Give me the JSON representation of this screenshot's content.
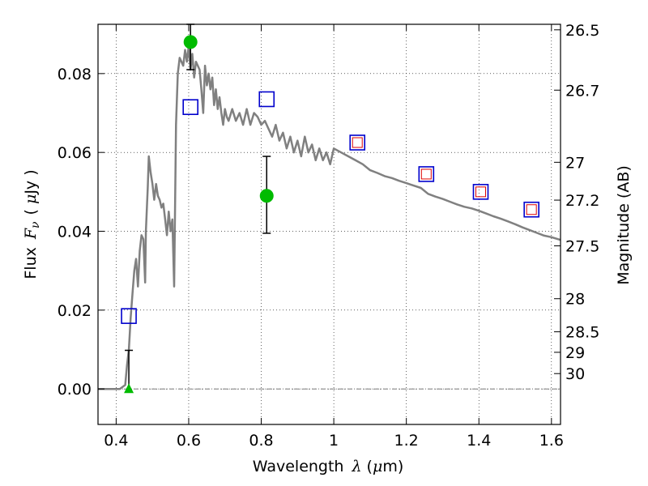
{
  "chart_data": {
    "type": "line",
    "title": "",
    "xlabel": "Wavelength",
    "xlabel_math_symbol": "λ",
    "xlabel_unit_prefix": "(",
    "xlabel_unit_mu": "μ",
    "xlabel_unit_rest": "m)",
    "ylabel": "Flux",
    "ylabel_math_symbol": "F",
    "ylabel_math_sub": "ν",
    "ylabel_unit_prefix": "(",
    "ylabel_unit_mu": "μ",
    "ylabel_unit_rest": "Jy )",
    "y2label": "Magnitude (AB)",
    "xlim": [
      0.35,
      1.625
    ],
    "ylim": [
      -0.009,
      0.0925
    ],
    "xticks": [
      0.4,
      0.6,
      0.8,
      1.0,
      1.2,
      1.4,
      1.6
    ],
    "xtick_labels": [
      "0.4",
      "0.6",
      "0.8",
      "1",
      "1.2",
      "1.4",
      "1.6"
    ],
    "yticks": [
      0.0,
      0.02,
      0.04,
      0.06,
      0.08
    ],
    "ytick_labels": [
      "0.00",
      "0.02",
      "0.04",
      "0.06",
      "0.08"
    ],
    "y2ticks": [
      {
        "label": "26.5",
        "flux": 0.0911
      },
      {
        "label": "26.7",
        "flux": 0.0758
      },
      {
        "label": "27",
        "flux": 0.0575
      },
      {
        "label": "27.2",
        "flux": 0.0479
      },
      {
        "label": "27.5",
        "flux": 0.0363
      },
      {
        "label": "28",
        "flux": 0.0229
      },
      {
        "label": "28.5",
        "flux": 0.0145
      },
      {
        "label": "29",
        "flux": 0.0093
      },
      {
        "label": "30",
        "flux": 0.0039
      }
    ],
    "grid": true,
    "zero_line": 0.0,
    "colors": {
      "model": "#808080",
      "obs": "#00bb00",
      "model_box": "#0000cc",
      "model_box_inner": "#dd0000",
      "errorbar": "#000000",
      "zero_line": "#666666"
    },
    "series": [
      {
        "name": "model SED",
        "kind": "line",
        "x": [
          0.35,
          0.41,
          0.425,
          0.43,
          0.435,
          0.44,
          0.445,
          0.45,
          0.455,
          0.46,
          0.465,
          0.47,
          0.475,
          0.48,
          0.482,
          0.487,
          0.49,
          0.495,
          0.5,
          0.505,
          0.51,
          0.515,
          0.52,
          0.525,
          0.53,
          0.535,
          0.54,
          0.545,
          0.55,
          0.555,
          0.56,
          0.565,
          0.57,
          0.575,
          0.58,
          0.585,
          0.59,
          0.595,
          0.6,
          0.605,
          0.61,
          0.615,
          0.62,
          0.625,
          0.63,
          0.635,
          0.64,
          0.645,
          0.65,
          0.655,
          0.66,
          0.665,
          0.67,
          0.675,
          0.68,
          0.685,
          0.69,
          0.695,
          0.7,
          0.705,
          0.71,
          0.72,
          0.73,
          0.74,
          0.75,
          0.76,
          0.77,
          0.78,
          0.79,
          0.8,
          0.81,
          0.82,
          0.83,
          0.84,
          0.85,
          0.86,
          0.87,
          0.88,
          0.89,
          0.9,
          0.91,
          0.92,
          0.93,
          0.94,
          0.95,
          0.96,
          0.97,
          0.98,
          0.99,
          1.0,
          1.02,
          1.04,
          1.06,
          1.08,
          1.1,
          1.12,
          1.14,
          1.16,
          1.18,
          1.2,
          1.22,
          1.24,
          1.26,
          1.28,
          1.3,
          1.32,
          1.34,
          1.36,
          1.38,
          1.4,
          1.42,
          1.44,
          1.46,
          1.48,
          1.5,
          1.52,
          1.54,
          1.56,
          1.58,
          1.6,
          1.625
        ],
        "y": [
          0.0,
          0.0,
          0.001,
          0.006,
          0.01,
          0.018,
          0.024,
          0.03,
          0.033,
          0.026,
          0.035,
          0.039,
          0.038,
          0.027,
          0.04,
          0.051,
          0.059,
          0.055,
          0.052,
          0.048,
          0.052,
          0.049,
          0.048,
          0.046,
          0.047,
          0.043,
          0.039,
          0.045,
          0.04,
          0.043,
          0.026,
          0.067,
          0.08,
          0.084,
          0.083,
          0.082,
          0.086,
          0.083,
          0.087,
          0.081,
          0.085,
          0.079,
          0.083,
          0.082,
          0.081,
          0.076,
          0.07,
          0.082,
          0.077,
          0.08,
          0.076,
          0.079,
          0.072,
          0.076,
          0.071,
          0.074,
          0.07,
          0.067,
          0.071,
          0.069,
          0.068,
          0.071,
          0.068,
          0.07,
          0.067,
          0.071,
          0.067,
          0.07,
          0.069,
          0.067,
          0.068,
          0.066,
          0.064,
          0.067,
          0.063,
          0.065,
          0.061,
          0.064,
          0.06,
          0.063,
          0.059,
          0.064,
          0.06,
          0.062,
          0.058,
          0.061,
          0.058,
          0.06,
          0.057,
          0.061,
          0.06,
          0.059,
          0.058,
          0.057,
          0.0555,
          0.0548,
          0.054,
          0.0535,
          0.0528,
          0.0522,
          0.0516,
          0.051,
          0.0495,
          0.0488,
          0.0482,
          0.0475,
          0.0468,
          0.0462,
          0.0458,
          0.0452,
          0.0445,
          0.0438,
          0.0432,
          0.0425,
          0.0418,
          0.041,
          0.0403,
          0.0396,
          0.0389,
          0.0385,
          0.0378
        ]
      },
      {
        "name": "model photometry",
        "kind": "squares",
        "x": [
          0.435,
          0.605,
          0.815,
          1.065,
          1.255,
          1.405,
          1.545
        ],
        "y": [
          0.0185,
          0.0715,
          0.0735,
          0.0625,
          0.0545,
          0.05,
          0.0455
        ]
      },
      {
        "name": "model photometry (inner)",
        "kind": "inner_squares",
        "x": [
          1.065,
          1.255,
          1.405,
          1.545
        ],
        "y": [
          0.0625,
          0.0545,
          0.05,
          0.0455
        ]
      },
      {
        "name": "observed photometry",
        "kind": "points_with_error",
        "x": [
          0.605,
          0.815
        ],
        "y": [
          0.088,
          0.049
        ],
        "yerr_low": [
          0.081,
          0.0395
        ],
        "yerr_high": [
          0.0925,
          0.059
        ]
      },
      {
        "name": "upper limit",
        "kind": "triangle_with_error",
        "x": [
          0.435
        ],
        "y": [
          0.0
        ],
        "yerr_low": [
          0.0
        ],
        "yerr_high": [
          0.0098
        ]
      }
    ]
  }
}
